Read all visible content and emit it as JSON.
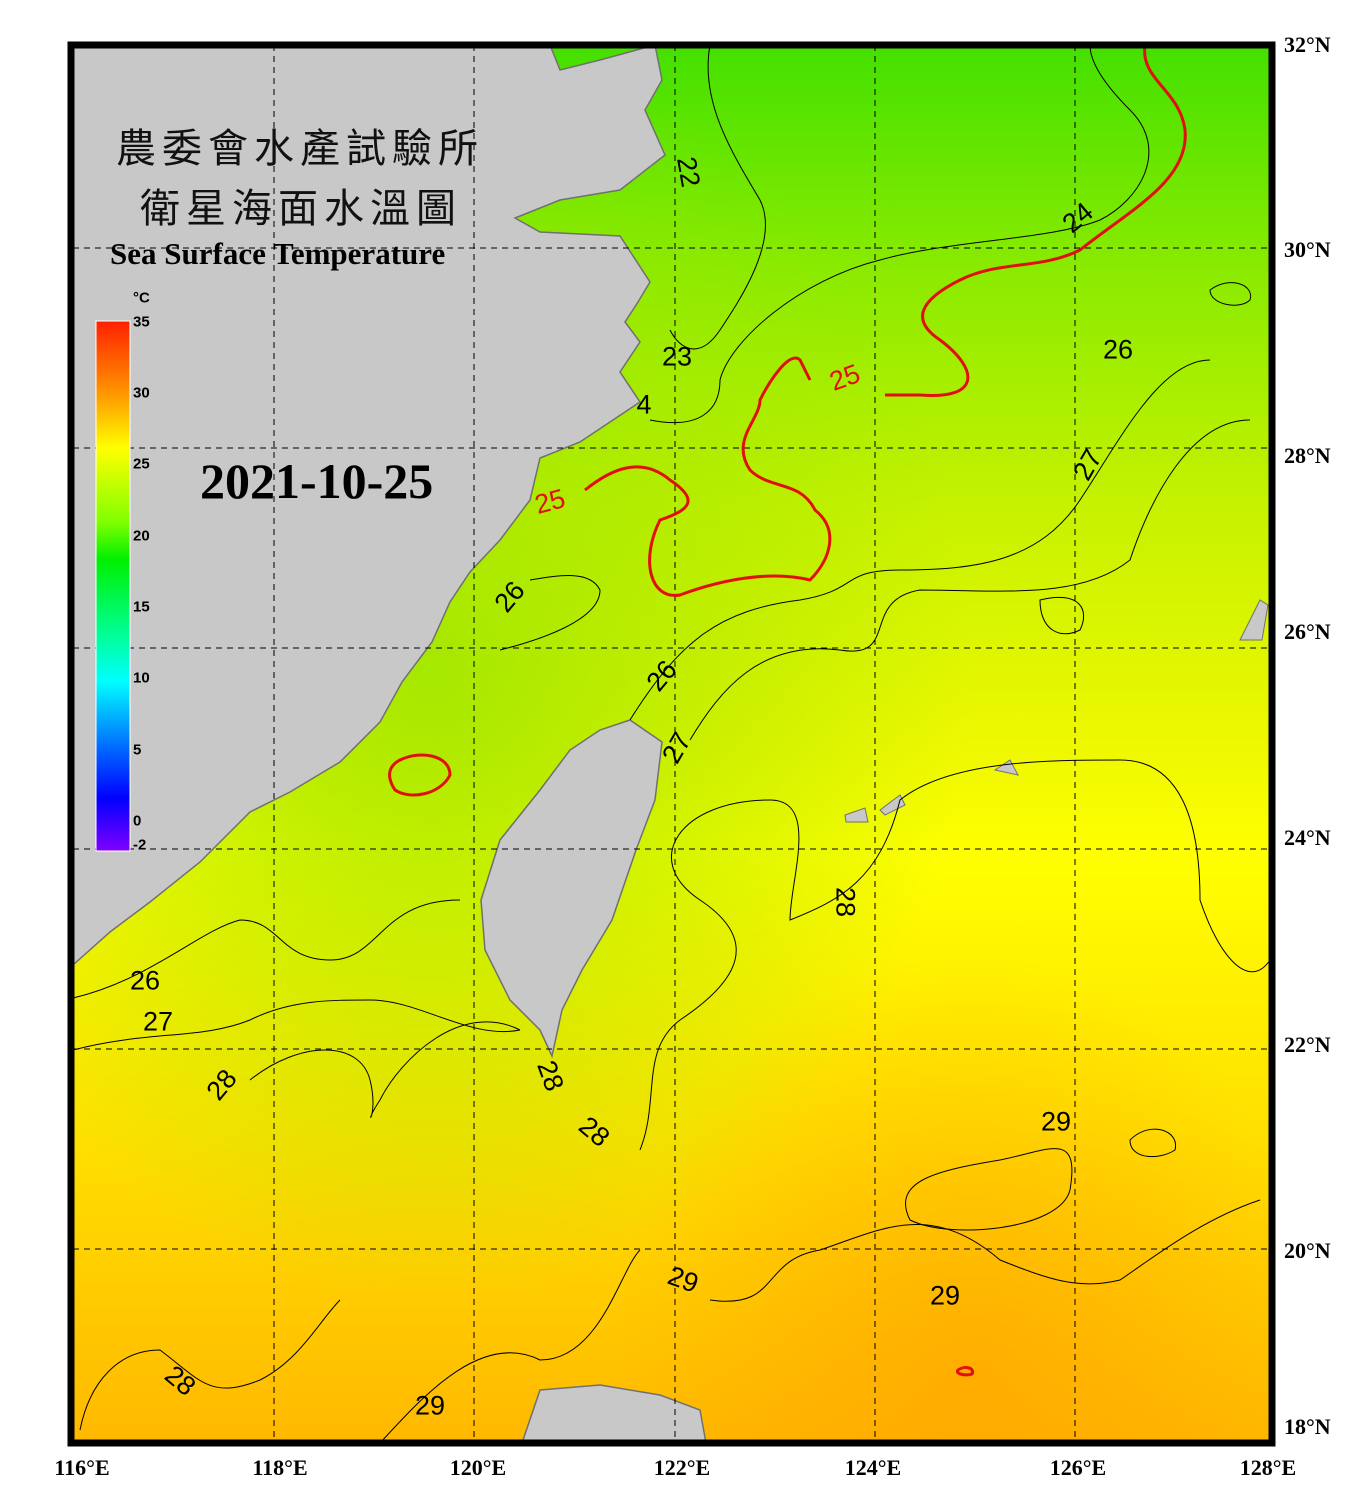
{
  "title": {
    "line1": "農委會水產試驗所",
    "line2": "衛星海面水溫圖",
    "english": "Sea Surface Temperature"
  },
  "date": "2021-10-25",
  "colorbar": {
    "unit": "°C",
    "ticks": [
      "35",
      "30",
      "25",
      "20",
      "15",
      "10",
      "5",
      "0",
      "-2"
    ],
    "range": [
      -2,
      35
    ]
  },
  "axes": {
    "longitude": [
      "116°E",
      "118°E",
      "120°E",
      "122°E",
      "124°E",
      "126°E",
      "128°E"
    ],
    "latitude": [
      "32°N",
      "30°N",
      "28°N",
      "26°N",
      "24°N",
      "22°N",
      "20°N",
      "18°N"
    ]
  },
  "contour_labels": [
    "22",
    "23",
    "4",
    "24",
    "25",
    "25",
    "26",
    "26",
    "26",
    "26",
    "27",
    "27",
    "27",
    "28",
    "28",
    "28",
    "28",
    "28",
    "29",
    "29",
    "29",
    "29"
  ],
  "colors": {
    "land": "#c8c8c8",
    "highlight_contour": "#e01010",
    "contour": "#000000",
    "frame": "#000000"
  }
}
